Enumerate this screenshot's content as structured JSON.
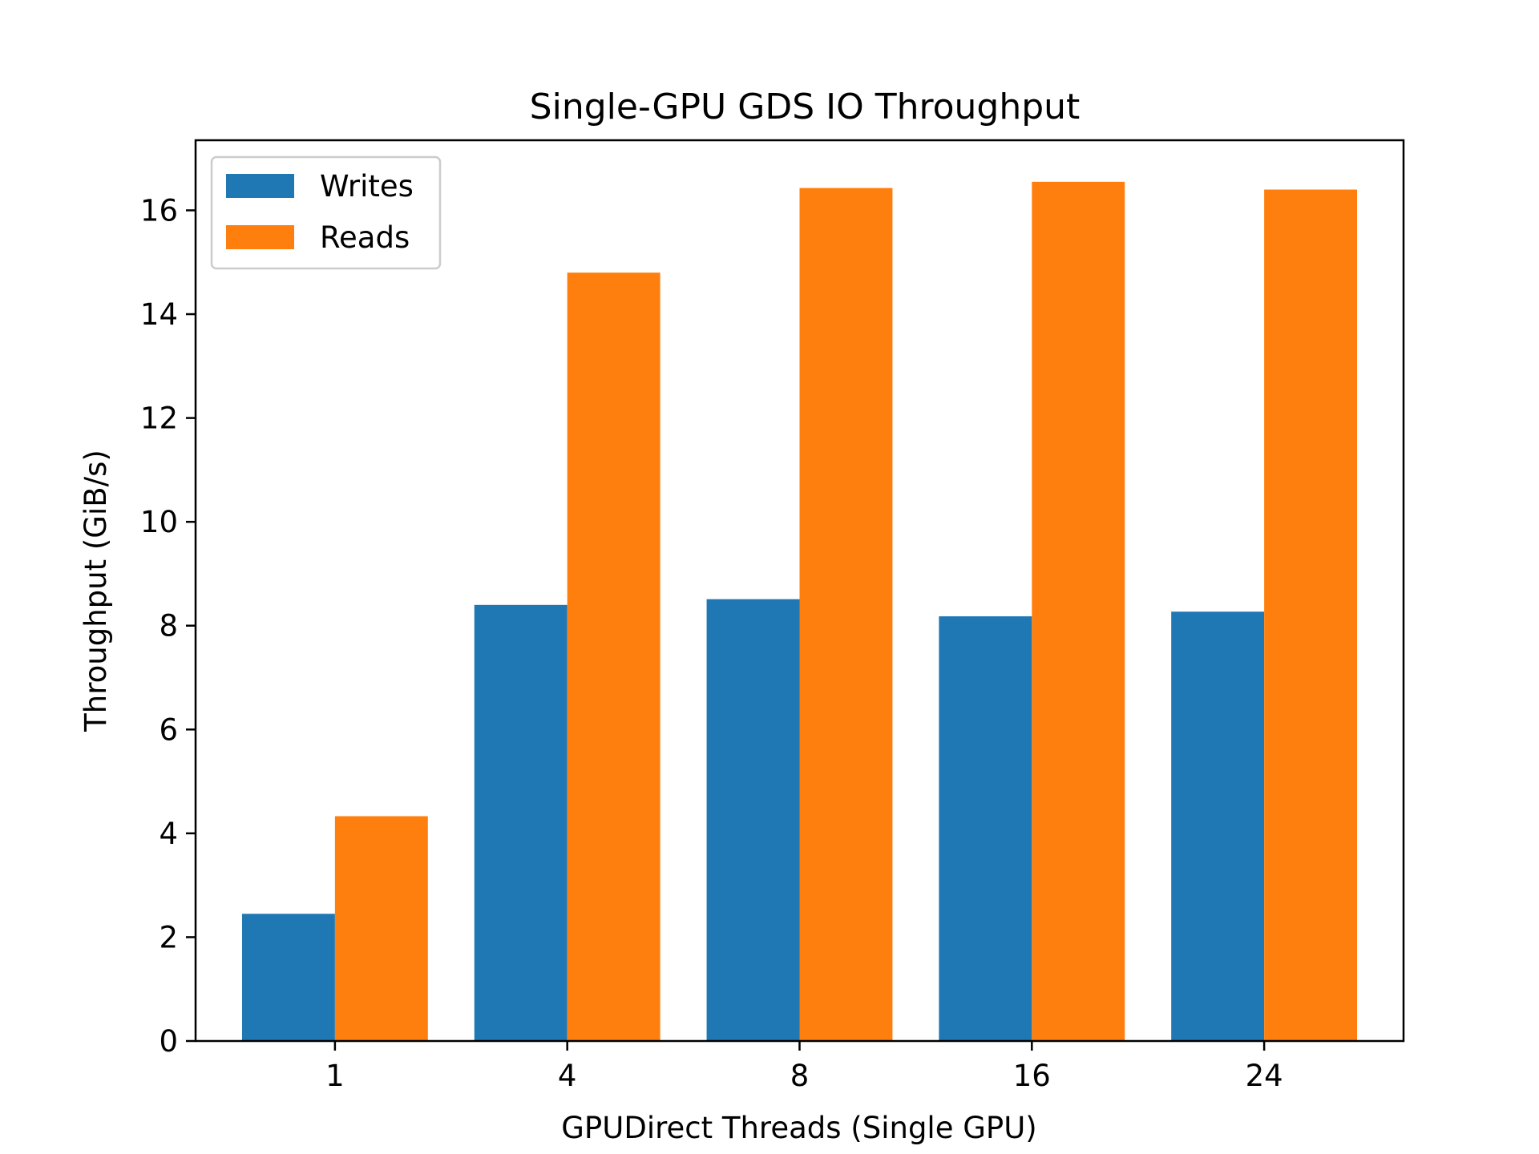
{
  "chart_data": {
    "type": "bar",
    "title": "Single-GPU GDS IO Throughput",
    "xlabel": "GPUDirect Threads (Single GPU)",
    "ylabel": "Throughput (GiB/s)",
    "categories": [
      "1",
      "4",
      "8",
      "16",
      "24"
    ],
    "series": [
      {
        "name": "Writes",
        "color": "#1f77b4",
        "values": [
          2.45,
          8.4,
          8.51,
          8.18,
          8.27
        ]
      },
      {
        "name": "Reads",
        "color": "#ff7f0e",
        "values": [
          4.33,
          14.8,
          16.43,
          16.55,
          16.4
        ]
      }
    ],
    "ylim": [
      0,
      17.35
    ],
    "yticks": [
      0,
      2,
      4,
      6,
      8,
      10,
      12,
      14,
      16
    ],
    "grid": false,
    "legend_position": "top-left"
  }
}
